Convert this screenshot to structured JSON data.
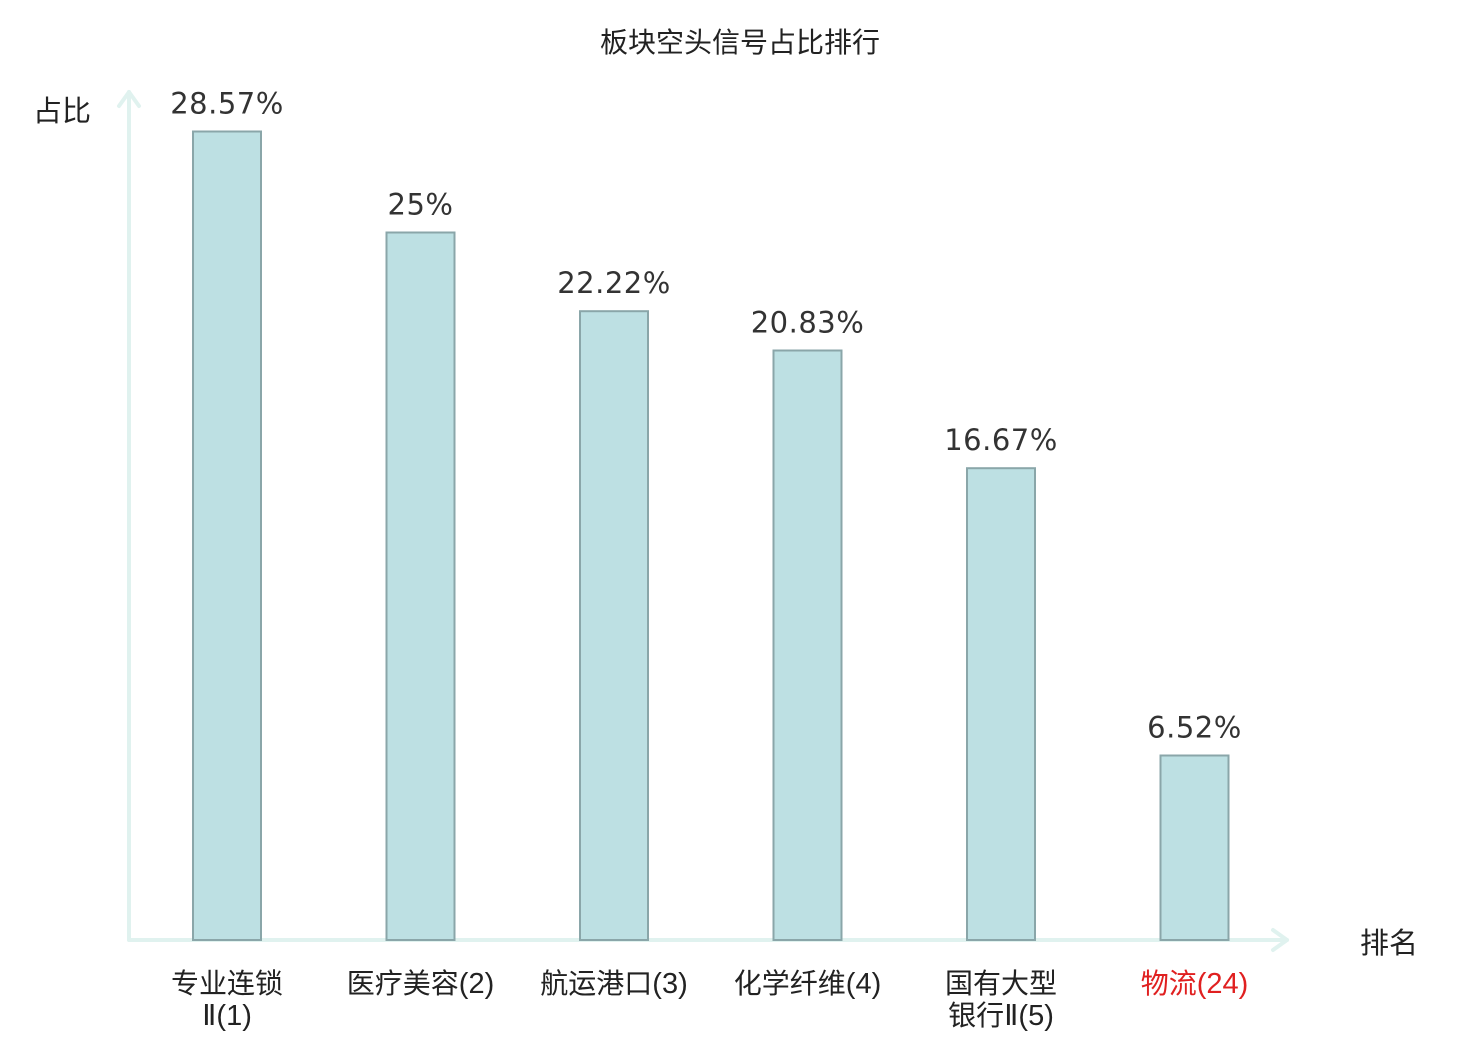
{
  "chart_data": {
    "type": "bar",
    "title": "板块空头信号占比排行",
    "ylabel": "占比",
    "xlabel": "排名",
    "ylim": [
      0,
      30
    ],
    "grid": false,
    "legend": "none",
    "colors": {
      "bar_fill": "#bde0e3",
      "bar_stroke": "#8aa6a9",
      "axis": "#e0f2ef",
      "highlight": "#e02020",
      "text": "#222222"
    },
    "categories": [
      {
        "lines": [
          {
            "main": "专业连锁",
            "suffix": ""
          },
          {
            "main": "",
            "suffix": "Ⅱ(1)"
          }
        ],
        "highlight": false
      },
      {
        "lines": [
          {
            "main": "医疗美容",
            "suffix": "(2)"
          }
        ],
        "highlight": false
      },
      {
        "lines": [
          {
            "main": "航运港口",
            "suffix": "(3)"
          }
        ],
        "highlight": false
      },
      {
        "lines": [
          {
            "main": "化学纤维",
            "suffix": "(4)"
          }
        ],
        "highlight": false
      },
      {
        "lines": [
          {
            "main": "国有大型",
            "suffix": ""
          },
          {
            "main": "银行",
            "suffix": "Ⅱ(5)"
          }
        ],
        "highlight": false
      },
      {
        "lines": [
          {
            "main": "物流",
            "suffix": "(24)"
          }
        ],
        "highlight": true
      }
    ],
    "values": [
      28.57,
      25,
      22.22,
      20.83,
      16.67,
      6.52
    ],
    "value_labels": [
      "28.57%",
      "25%",
      "22.22%",
      "20.83%",
      "16.67%",
      "6.52%"
    ]
  }
}
